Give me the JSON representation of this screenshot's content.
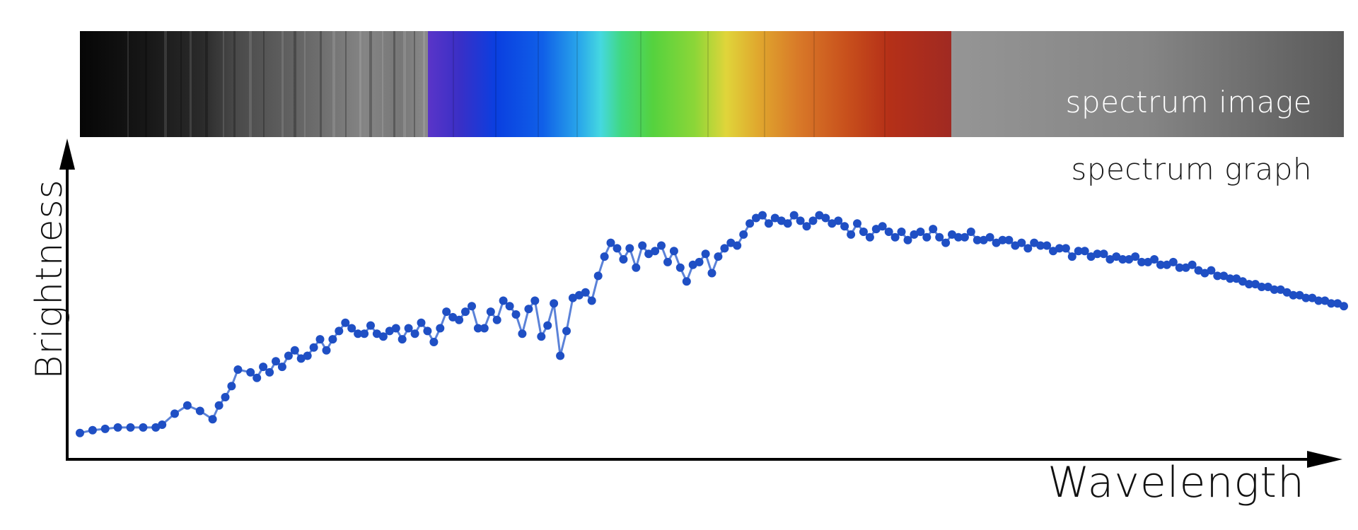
{
  "labels": {
    "spectrum_image": "spectrum image",
    "spectrum_graph": "spectrum graph"
  },
  "colors": {
    "series": "#1f4fc4",
    "series_line": "#5b82d8",
    "axis": "#000000",
    "visible_band": [
      "#5a35c8",
      "#3030c8",
      "#0a3fe0",
      "#1060e8",
      "#2aa8ea",
      "#45d8e0",
      "#40d880",
      "#55d23e",
      "#8cd638",
      "#e0d53a",
      "#e0a82e",
      "#d87828",
      "#c8501c",
      "#b53018",
      "#a82820",
      "#a02a22"
    ]
  },
  "chart_data": {
    "type": "scatter",
    "title": "",
    "xlabel": "Wavelength",
    "ylabel": "Brightness",
    "xlim": [
      0,
      100
    ],
    "ylim": [
      0,
      100
    ],
    "grid": false,
    "legend": "none",
    "series": [
      {
        "values": [
          [
            0,
            7
          ],
          [
            1,
            8
          ],
          [
            2,
            8.5
          ],
          [
            3,
            9
          ],
          [
            4,
            9
          ],
          [
            5,
            9
          ],
          [
            6,
            9
          ],
          [
            6.5,
            10
          ],
          [
            7.5,
            14
          ],
          [
            8.5,
            17
          ],
          [
            9.5,
            15
          ],
          [
            10.5,
            12
          ],
          [
            11,
            17
          ],
          [
            11.5,
            20
          ],
          [
            12,
            24
          ],
          [
            12.5,
            30
          ],
          [
            13.5,
            29
          ],
          [
            14,
            27
          ],
          [
            14.5,
            31
          ],
          [
            15,
            29
          ],
          [
            15.5,
            33
          ],
          [
            16,
            31
          ],
          [
            16.5,
            35
          ],
          [
            17,
            37
          ],
          [
            17.5,
            34
          ],
          [
            18,
            35
          ],
          [
            18.5,
            38
          ],
          [
            19,
            41
          ],
          [
            19.5,
            37
          ],
          [
            20,
            41
          ],
          [
            20.5,
            44
          ],
          [
            21,
            47
          ],
          [
            21.5,
            45
          ],
          [
            22,
            43
          ],
          [
            22.5,
            43
          ],
          [
            23,
            46
          ],
          [
            23.5,
            43
          ],
          [
            24,
            42
          ],
          [
            24.5,
            44
          ],
          [
            25,
            45
          ],
          [
            25.5,
            41
          ],
          [
            26,
            45
          ],
          [
            26.5,
            43
          ],
          [
            27,
            47
          ],
          [
            27.5,
            44
          ],
          [
            28,
            40
          ],
          [
            28.5,
            45
          ],
          [
            29,
            51
          ],
          [
            29.5,
            49
          ],
          [
            30,
            48
          ],
          [
            30.5,
            51
          ],
          [
            31,
            53
          ],
          [
            31.5,
            45
          ],
          [
            32,
            45
          ],
          [
            32.5,
            51
          ],
          [
            33,
            48
          ],
          [
            33.5,
            55
          ],
          [
            34,
            53
          ],
          [
            34.5,
            50
          ],
          [
            35,
            43
          ],
          [
            35.5,
            52
          ],
          [
            36,
            55
          ],
          [
            36.5,
            42
          ],
          [
            37,
            46
          ],
          [
            37.5,
            54
          ],
          [
            38,
            35
          ],
          [
            38.5,
            44
          ],
          [
            39,
            56
          ],
          [
            39.5,
            57
          ],
          [
            40,
            58
          ],
          [
            40.5,
            55
          ],
          [
            41,
            64
          ],
          [
            41.5,
            71
          ],
          [
            42,
            76
          ],
          [
            42.5,
            74
          ],
          [
            43,
            70
          ],
          [
            43.5,
            74
          ],
          [
            44,
            67
          ],
          [
            44.5,
            75
          ],
          [
            45,
            72
          ],
          [
            45.5,
            73
          ],
          [
            46,
            75
          ],
          [
            46.5,
            69
          ],
          [
            47,
            73
          ],
          [
            47.5,
            67
          ],
          [
            48,
            62
          ],
          [
            48.5,
            68
          ],
          [
            49,
            69
          ],
          [
            49.5,
            72
          ],
          [
            50,
            65
          ],
          [
            50.5,
            71
          ],
          [
            51,
            74
          ],
          [
            51.5,
            76
          ],
          [
            52,
            75
          ],
          [
            52.5,
            79
          ],
          [
            53,
            83
          ],
          [
            53.5,
            85
          ],
          [
            54,
            86
          ],
          [
            54.5,
            83
          ],
          [
            55,
            85
          ],
          [
            55.5,
            84
          ],
          [
            56,
            83
          ],
          [
            56.5,
            86
          ],
          [
            57,
            84
          ],
          [
            57.5,
            82
          ],
          [
            58,
            84
          ],
          [
            58.5,
            86
          ],
          [
            59,
            85
          ],
          [
            59.5,
            83
          ],
          [
            60,
            84
          ],
          [
            60.5,
            82
          ],
          [
            61,
            79
          ],
          [
            61.5,
            83
          ],
          [
            62,
            80
          ],
          [
            62.5,
            78
          ],
          [
            63,
            81
          ],
          [
            63.5,
            82
          ],
          [
            64,
            80
          ],
          [
            64.5,
            78
          ],
          [
            65,
            80
          ],
          [
            65.5,
            77
          ],
          [
            66,
            79
          ],
          [
            66.5,
            80
          ],
          [
            67,
            78
          ],
          [
            67.5,
            81
          ],
          [
            68,
            78
          ],
          [
            68.5,
            76
          ],
          [
            69,
            79
          ],
          [
            69.5,
            78
          ],
          [
            70,
            78
          ],
          [
            70.5,
            80
          ],
          [
            71,
            77
          ],
          [
            71.5,
            77
          ],
          [
            72,
            78
          ],
          [
            72.5,
            76
          ],
          [
            73,
            77
          ],
          [
            73.5,
            77
          ],
          [
            74,
            75
          ],
          [
            74.5,
            76
          ],
          [
            75,
            74
          ],
          [
            75.5,
            76
          ],
          [
            76,
            75
          ],
          [
            76.5,
            75
          ],
          [
            77,
            73
          ],
          [
            77.5,
            74
          ],
          [
            78,
            74
          ],
          [
            78.5,
            71
          ],
          [
            79,
            73
          ],
          [
            79.5,
            73
          ],
          [
            80,
            71
          ],
          [
            80.5,
            72
          ],
          [
            81,
            72
          ],
          [
            81.5,
            70
          ],
          [
            82,
            71
          ],
          [
            82.5,
            70
          ],
          [
            83,
            70
          ],
          [
            83.5,
            71
          ],
          [
            84,
            69
          ],
          [
            84.5,
            69
          ],
          [
            85,
            70
          ],
          [
            85.5,
            68
          ],
          [
            86,
            68
          ],
          [
            86.5,
            69
          ],
          [
            87,
            67
          ],
          [
            87.5,
            67
          ],
          [
            88,
            68
          ],
          [
            88.5,
            66
          ],
          [
            89,
            65
          ],
          [
            89.5,
            66
          ],
          [
            90,
            64
          ],
          [
            90.5,
            64
          ],
          [
            91,
            63
          ],
          [
            91.5,
            63
          ],
          [
            92,
            62
          ],
          [
            92.5,
            61
          ],
          [
            93,
            61
          ],
          [
            93.5,
            60
          ],
          [
            94,
            60
          ],
          [
            94.5,
            59
          ],
          [
            95,
            59
          ],
          [
            95.5,
            58
          ],
          [
            96,
            57
          ],
          [
            96.5,
            57
          ],
          [
            97,
            56
          ],
          [
            97.5,
            56
          ],
          [
            98,
            55
          ],
          [
            98.5,
            55
          ],
          [
            99,
            54
          ],
          [
            99.5,
            54
          ],
          [
            100,
            53
          ]
        ]
      }
    ]
  }
}
